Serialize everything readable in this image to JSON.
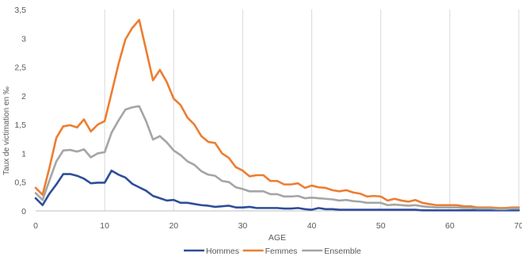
{
  "chart_data": {
    "type": "line",
    "xlabel": "AGE",
    "ylabel": "Taux de victimation en ‰",
    "xlim": [
      0,
      70
    ],
    "ylim": [
      0,
      3.5
    ],
    "x_ticks": [
      "0",
      "10",
      "20",
      "30",
      "40",
      "50",
      "60",
      "70"
    ],
    "y_ticks": [
      "0",
      "0,5",
      "1",
      "1,5",
      "2",
      "2,5",
      "3",
      "3,5"
    ],
    "grid": "vertical",
    "legend_position": "bottom",
    "x": [
      0,
      1,
      2,
      3,
      4,
      5,
      6,
      7,
      8,
      9,
      10,
      11,
      12,
      13,
      14,
      15,
      16,
      17,
      18,
      19,
      20,
      21,
      22,
      23,
      24,
      25,
      26,
      27,
      28,
      29,
      30,
      31,
      32,
      33,
      34,
      35,
      36,
      37,
      38,
      39,
      40,
      41,
      42,
      43,
      44,
      45,
      46,
      47,
      48,
      49,
      50,
      51,
      52,
      53,
      54,
      55,
      56,
      57,
      58,
      59,
      60,
      61,
      62,
      63,
      64,
      65,
      66,
      67,
      68,
      69,
      70
    ],
    "series": [
      {
        "name": "Hommes",
        "color": "#2E4E9A",
        "values": [
          0.22,
          0.1,
          0.3,
          0.46,
          0.64,
          0.64,
          0.61,
          0.56,
          0.48,
          0.49,
          0.49,
          0.7,
          0.63,
          0.58,
          0.47,
          0.41,
          0.35,
          0.26,
          0.22,
          0.18,
          0.19,
          0.14,
          0.14,
          0.12,
          0.1,
          0.09,
          0.07,
          0.08,
          0.09,
          0.06,
          0.06,
          0.07,
          0.05,
          0.05,
          0.05,
          0.05,
          0.04,
          0.04,
          0.05,
          0.03,
          0.02,
          0.05,
          0.03,
          0.03,
          0.02,
          0.02,
          0.02,
          0.02,
          0.02,
          0.02,
          0.02,
          0.02,
          0.02,
          0.02,
          0.02,
          0.02,
          0.01,
          0.01,
          0.01,
          0.01,
          0.01,
          0.01,
          0.01,
          0.01,
          0.01,
          0.01,
          0.01,
          0.01,
          0.01,
          0.01,
          0.01
        ]
      },
      {
        "name": "Femmes",
        "color": "#ED7D31",
        "values": [
          0.4,
          0.28,
          0.75,
          1.27,
          1.47,
          1.49,
          1.45,
          1.59,
          1.38,
          1.5,
          1.56,
          2.05,
          2.55,
          2.98,
          3.18,
          3.32,
          2.8,
          2.27,
          2.45,
          2.24,
          1.95,
          1.84,
          1.62,
          1.5,
          1.3,
          1.2,
          1.18,
          1.0,
          0.92,
          0.76,
          0.7,
          0.6,
          0.62,
          0.62,
          0.52,
          0.52,
          0.46,
          0.46,
          0.48,
          0.4,
          0.44,
          0.41,
          0.4,
          0.36,
          0.34,
          0.36,
          0.32,
          0.3,
          0.25,
          0.26,
          0.25,
          0.18,
          0.21,
          0.18,
          0.16,
          0.19,
          0.14,
          0.12,
          0.1,
          0.1,
          0.1,
          0.1,
          0.08,
          0.08,
          0.06,
          0.06,
          0.06,
          0.05,
          0.05,
          0.06,
          0.06
        ]
      },
      {
        "name": "Ensemble",
        "color": "#A5A5A5",
        "values": [
          0.31,
          0.19,
          0.53,
          0.86,
          1.05,
          1.06,
          1.03,
          1.07,
          0.93,
          1.0,
          1.02,
          1.36,
          1.57,
          1.76,
          1.8,
          1.82,
          1.56,
          1.24,
          1.3,
          1.19,
          1.05,
          0.97,
          0.86,
          0.8,
          0.69,
          0.63,
          0.61,
          0.52,
          0.5,
          0.41,
          0.38,
          0.34,
          0.34,
          0.34,
          0.29,
          0.29,
          0.25,
          0.25,
          0.26,
          0.22,
          0.23,
          0.22,
          0.21,
          0.2,
          0.18,
          0.19,
          0.17,
          0.16,
          0.14,
          0.14,
          0.14,
          0.1,
          0.11,
          0.1,
          0.09,
          0.1,
          0.08,
          0.07,
          0.06,
          0.06,
          0.06,
          0.06,
          0.05,
          0.05,
          0.04,
          0.04,
          0.04,
          0.03,
          0.03,
          0.04,
          0.04
        ]
      }
    ]
  }
}
